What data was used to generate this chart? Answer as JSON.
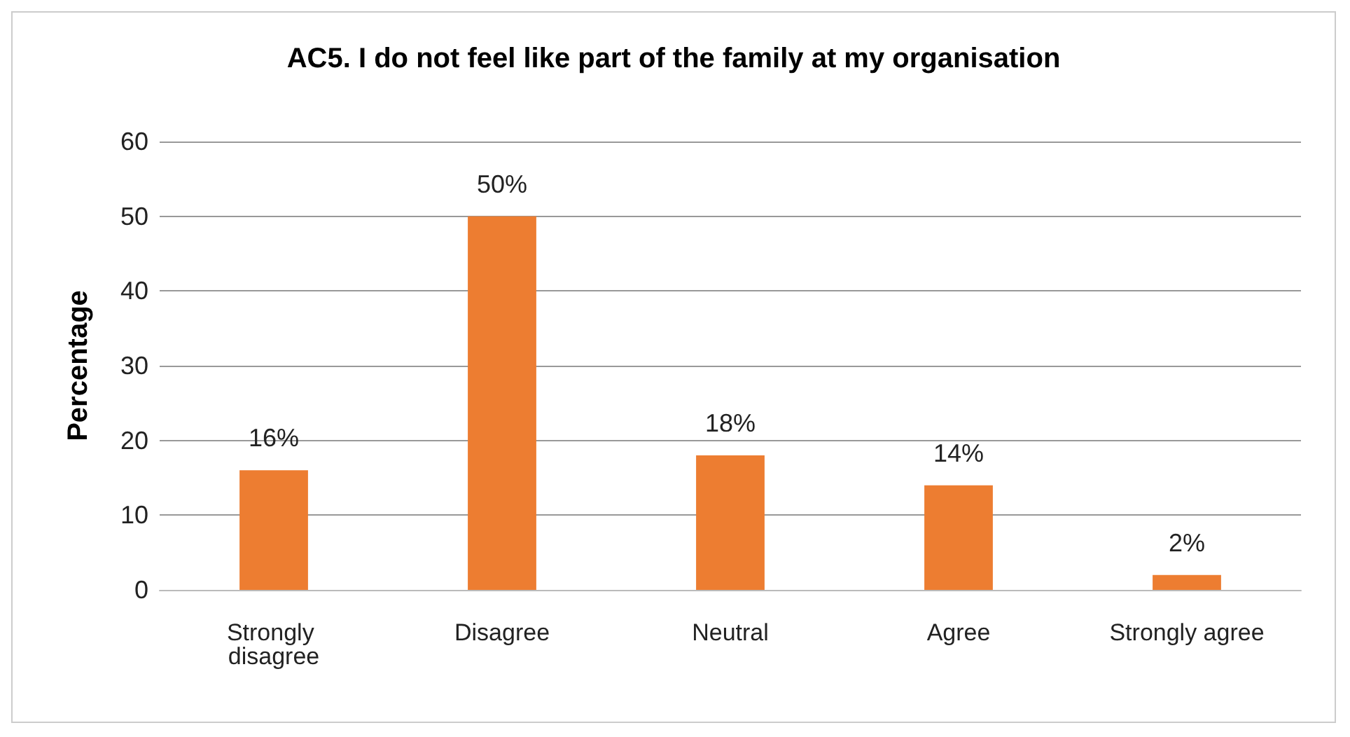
{
  "chart_data": {
    "type": "bar",
    "title": "AC5. I do not feel like part of the family at my organisation",
    "ylabel": "Percentage",
    "categories": [
      "Strongly disagree",
      "Disagree",
      "Neutral",
      "Agree",
      "Strongly agree"
    ],
    "values": [
      16,
      50,
      18,
      14,
      2
    ],
    "value_labels": [
      "16%",
      "50%",
      "18%",
      "14%",
      "2%"
    ],
    "color": "#ed7d31",
    "ylim": [
      0,
      60
    ],
    "yticks": [
      0,
      10,
      20,
      30,
      40,
      50,
      60
    ],
    "grid": "y"
  }
}
